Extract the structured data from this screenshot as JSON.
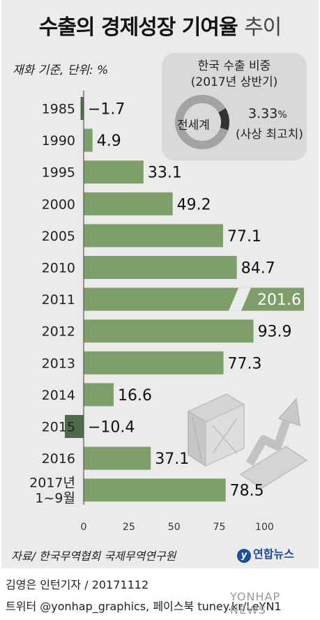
{
  "title_main": "수출의 경제성장 기여율",
  "title_suffix": "추이",
  "unit_note": "재화 기준, 단위: %",
  "inset": {
    "title_line1": "한국 수출 비중",
    "title_line2": "(2017년 상반기)",
    "center_label": "전세계",
    "value": "3.33",
    "value_unit": "%",
    "value_note": "(사상 최고치)",
    "share": 3.33,
    "colors": {
      "ring": "#a3a3a3",
      "slice": "#333333"
    }
  },
  "chart_data": {
    "type": "bar",
    "orientation": "horizontal",
    "categories": [
      "1985",
      "1990",
      "1995",
      "2000",
      "2005",
      "2010",
      "2011",
      "2012",
      "2013",
      "2014",
      "2015",
      "2016",
      "2017년|1~9월"
    ],
    "values": [
      -1.7,
      4.9,
      33.1,
      49.2,
      77.1,
      84.7,
      201.6,
      93.9,
      77.3,
      16.6,
      -10.4,
      37.1,
      78.5
    ],
    "value_labels": [
      "−1.7",
      "4.9",
      "33.1",
      "49.2",
      "77.1",
      "84.7",
      "201.6",
      "93.9",
      "77.3",
      "16.6",
      "−10.4",
      "37.1",
      "78.5"
    ],
    "x_ticks": [
      0,
      25,
      50,
      75,
      100
    ],
    "xlim": [
      -12,
      120
    ],
    "axis_break_at": 201.6,
    "colors": {
      "positive": "#7f9f6a",
      "negative": "#4d6b49",
      "axis": "#555555"
    }
  },
  "source": "자료/ 한국무역협회 국제무역연구원",
  "logo_text": "연합뉴스",
  "credits": {
    "line1": "김영은 인턴기자 / 20171112",
    "line2": "트위터 @yonhap_graphics, 페이스북 tuney.kr/LeYN1"
  },
  "watermark": "YONHAP NEWS"
}
